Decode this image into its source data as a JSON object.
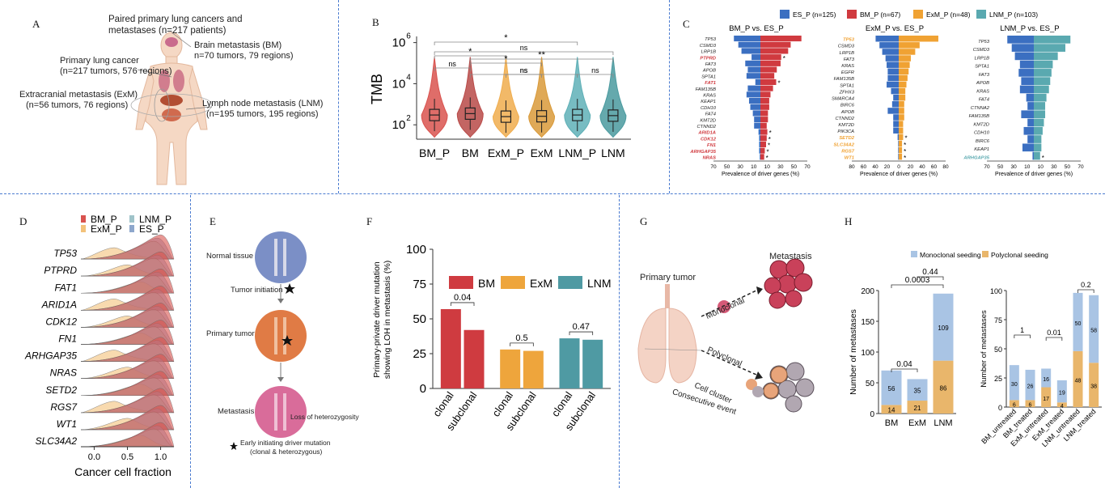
{
  "panels": {
    "A": {
      "letter": "A",
      "paired": "Paired primary lung cancers and",
      "paired2": "metastases (n=217 patients)",
      "bm": "Brain metastasis (BM)",
      "bm2": "n=70 tumors, 79 regions)",
      "primary": "Primary lung cancer",
      "primary2": "(n=217 tumors, 576 regions)",
      "exm": "Extracranial metastasis (ExM)",
      "exm2": "(n=56 tumors, 76 regions)",
      "lnm": "Lymph node metastasis (LNM)",
      "lnm2": "(n=195 tumors, 195 regions)"
    },
    "B": {
      "letter": "B"
    },
    "C": {
      "letter": "C"
    },
    "D": {
      "letter": "D"
    },
    "E": {
      "letter": "E",
      "normal": "Normal tissue",
      "initiation": "Tumor initiation",
      "primary": "Primary tumor",
      "metastasis": "Metastasis",
      "loh": "Loss of heterozygosity",
      "note": "Early initiating driver mutation",
      "note2": "(clonal & heterozygous)"
    },
    "F": {
      "letter": "F"
    },
    "G": {
      "letter": "G",
      "primary": "Primary tumor",
      "metastasis": "Metastasis",
      "mono": "Monoclonal",
      "poly": "Polyclonal",
      "cluster": "Cell cluster",
      "consecutive": "Consecutive event"
    },
    "H": {
      "letter": "H"
    }
  },
  "chart_data": [
    {
      "id": "B",
      "type": "violin",
      "ylabel": "TMB",
      "yscale": "log",
      "yticks": [
        "10",
        "10",
        "10"
      ],
      "ytick_exp": [
        "2",
        "4",
        "6"
      ],
      "ytick_values": [
        100,
        10000,
        1000000
      ],
      "categories": [
        "BM_P",
        "BM",
        "ExM_P",
        "ExM",
        "LNM_P",
        "LNM"
      ],
      "colors": [
        "#d9534f",
        "#b94a48",
        "#f0ad4e",
        "#d99a3a",
        "#5fb0b7",
        "#4a9a9f"
      ],
      "medians": [
        300,
        350,
        250,
        260,
        300,
        280
      ],
      "brackets": [
        {
          "from": 0,
          "to": 4,
          "label": "*"
        },
        {
          "from": 0,
          "to": 5,
          "label": "ns"
        },
        {
          "from": 0,
          "to": 2,
          "label": "*"
        },
        {
          "from": 1,
          "to": 5,
          "label": "**"
        },
        {
          "from": 1,
          "to": 3,
          "label": "*"
        },
        {
          "from": 0,
          "to": 1,
          "label": "ns"
        },
        {
          "from": 1,
          "to": 4,
          "label": "ns"
        },
        {
          "from": 2,
          "to": 3,
          "label": "ns"
        },
        {
          "from": 4,
          "to": 5,
          "label": "ns"
        }
      ]
    },
    {
      "id": "C",
      "type": "butterfly-bar",
      "legend": [
        {
          "name": "ES_P (n=125)",
          "color": "#3b6fc1"
        },
        {
          "name": "BM_P (n=67)",
          "color": "#d03a3f"
        },
        {
          "name": "ExM_P (n=48)",
          "color": "#f0a233"
        },
        {
          "name": "LNM_P (n=103)",
          "color": "#5aa9b0"
        }
      ],
      "xlabel": "Prevalence of driver genes (%)",
      "subplots": [
        {
          "title": "BM_P vs. ES_P",
          "xticks": [
            "70",
            "50",
            "30",
            "10",
            "10",
            "30",
            "50",
            "70"
          ],
          "right_color": "#d03a3f",
          "genes": [
            "TP53",
            "CSMD3",
            "LRP1B",
            "PTPRD",
            "FAT3",
            "APOB",
            "SPTA1",
            "FAT1",
            "FAM135B",
            "KRAS",
            "KEAP1",
            "CDH10",
            "FAT4",
            "KMT2D",
            "CTNND2",
            "ARID1A",
            "CDK12",
            "FN1",
            "ARHGAP35",
            "NRAS"
          ],
          "highlight": [
            "PTPRD",
            "FAT1",
            "ARID1A",
            "CDK12",
            "FN1",
            "ARHGAP35",
            "NRAS"
          ],
          "left": [
            42,
            35,
            30,
            14,
            24,
            20,
            22,
            8,
            20,
            22,
            18,
            16,
            12,
            10,
            10,
            3,
            2,
            2,
            2,
            1
          ],
          "right": [
            65,
            48,
            44,
            33,
            32,
            26,
            22,
            25,
            20,
            16,
            14,
            14,
            12,
            12,
            10,
            11,
            10,
            9,
            7,
            6
          ],
          "star": [
            "PTPRD",
            "FAT1",
            "ARID1A",
            "CDK12",
            "FN1",
            "ARHGAP35",
            "NRAS"
          ]
        },
        {
          "title": "ExM_P vs. ES_P",
          "xticks": [
            "80",
            "60",
            "40",
            "20",
            "0",
            "20",
            "40",
            "60",
            "80"
          ],
          "right_color": "#f0a233",
          "genes": [
            "TP53",
            "CSMD3",
            "LRP1B",
            "FAT3",
            "KRAS",
            "EGFR",
            "FAM135B",
            "SPTA1",
            "ZFHX3",
            "SMARCA4",
            "BIRC6",
            "APOB",
            "CTNND2",
            "KMT2D",
            "PIK3CA",
            "SETD2",
            "SLC34A2",
            "RGS7",
            "WT1"
          ],
          "highlight": [
            "TP53",
            "SETD2",
            "SLC34A2",
            "RGS7",
            "WT1"
          ],
          "left": [
            42,
            35,
            30,
            24,
            22,
            20,
            20,
            22,
            14,
            10,
            12,
            20,
            10,
            10,
            10,
            2,
            1,
            1,
            1
          ],
          "right": [
            72,
            38,
            30,
            22,
            20,
            18,
            16,
            14,
            12,
            12,
            10,
            10,
            10,
            8,
            8,
            8,
            6,
            6,
            6
          ],
          "star": [
            "SETD2",
            "SLC34A2",
            "RGS7",
            "WT1"
          ]
        },
        {
          "title": "LNM_P vs. ES_P",
          "xticks": [
            "70",
            "50",
            "30",
            "10",
            "10",
            "30",
            "50",
            "70"
          ],
          "right_color": "#5aa9b0",
          "genes": [
            "TP53",
            "CSMD3",
            "LRP1B",
            "SPTA1",
            "FAT3",
            "APOB",
            "KRAS",
            "FAT4",
            "CTNNA2",
            "FAM135B",
            "KMT2D",
            "CDH10",
            "BIRC6",
            "KEAP1",
            "ARHGAP35"
          ],
          "highlight": [
            "ARHGAP35"
          ],
          "left": [
            42,
            35,
            30,
            22,
            24,
            20,
            22,
            12,
            10,
            20,
            10,
            16,
            10,
            18,
            2
          ],
          "right": [
            58,
            50,
            38,
            30,
            28,
            26,
            24,
            20,
            18,
            18,
            16,
            14,
            12,
            12,
            10
          ],
          "star": [
            "ARHGAP35"
          ]
        }
      ]
    },
    {
      "id": "D",
      "type": "ridgeline",
      "xlabel": "Cancer cell fraction",
      "xticks": [
        "0.0",
        "0.5",
        "1.0"
      ],
      "legend": [
        {
          "name": "BM_P",
          "color": "#d9534f"
        },
        {
          "name": "LNM_P",
          "color": "#9fc3c9"
        },
        {
          "name": "ExM_P",
          "color": "#f3c27a"
        },
        {
          "name": "ES_P",
          "color": "#8ea7cc"
        }
      ],
      "genes": [
        "TP53",
        "PTPRD",
        "FAT1",
        "ARID1A",
        "CDK12",
        "FN1",
        "ARHGAP35",
        "NRAS",
        "SETD2",
        "RGS7",
        "WT1",
        "SLC34A2"
      ]
    },
    {
      "id": "F",
      "type": "bar",
      "ylabel": "Primary-private driver mutation showing LOH in metastasis (%)",
      "ylim": [
        0,
        100
      ],
      "yticks": [
        "0",
        "25",
        "50",
        "75",
        "100"
      ],
      "legend": [
        {
          "name": "BM",
          "color": "#cf3b40"
        },
        {
          "name": "ExM",
          "color": "#eea53c"
        },
        {
          "name": "LNM",
          "color": "#4f9aa3"
        }
      ],
      "categories": [
        "clonal",
        "subclonal",
        "clonal",
        "subclonal",
        "clonal",
        "subclonal"
      ],
      "values": [
        57,
        42,
        28,
        27,
        36,
        35
      ],
      "colors": [
        "#cf3b40",
        "#cf3b40",
        "#eea53c",
        "#eea53c",
        "#4f9aa3",
        "#4f9aa3"
      ],
      "pvalues": [
        {
          "from": 0,
          "to": 1,
          "label": "0.04"
        },
        {
          "from": 2,
          "to": 3,
          "label": "0.5"
        },
        {
          "from": 4,
          "to": 5,
          "label": "0.47"
        }
      ]
    },
    {
      "id": "H1",
      "type": "stacked-bar",
      "ylabel": "Number of metastases",
      "ylim": [
        0,
        200
      ],
      "yticks": [
        "0",
        "50",
        "100",
        "150",
        "200"
      ],
      "legend": [
        {
          "name": "Monoclonal seeding",
          "color": "#a9c4e4"
        },
        {
          "name": "Polyclonal seeding",
          "color": "#e9b66b"
        }
      ],
      "categories": [
        "BM",
        "ExM",
        "LNM"
      ],
      "series": [
        {
          "name": "Polyclonal seeding",
          "values": [
            14,
            21,
            86
          ]
        },
        {
          "name": "Monoclonal seeding",
          "values": [
            56,
            35,
            109
          ]
        }
      ],
      "pvalues": [
        {
          "from": 0,
          "to": 2,
          "label": "0.0003"
        },
        {
          "from": 1,
          "to": 2,
          "label": "0.44"
        },
        {
          "from": 0,
          "to": 1,
          "label": "0.04"
        }
      ]
    },
    {
      "id": "H2",
      "type": "stacked-bar",
      "ylabel": "Number of metastases",
      "ylim": [
        0,
        100
      ],
      "yticks": [
        "0",
        "25",
        "50",
        "75",
        "100"
      ],
      "categories": [
        "BM_untreated",
        "BM_treated",
        "ExM_untreated",
        "ExM_treated",
        "LNM_untreated",
        "LNM_treated"
      ],
      "series": [
        {
          "name": "Polyclonal seeding",
          "values": [
            6,
            6,
            17,
            4,
            48,
            38
          ]
        },
        {
          "name": "Monoclonal seeding",
          "values": [
            30,
            26,
            16,
            19,
            50,
            58
          ]
        }
      ],
      "pvalues": [
        {
          "from": 0,
          "to": 1,
          "label": "1"
        },
        {
          "from": 2,
          "to": 3,
          "label": "0.01"
        },
        {
          "from": 4,
          "to": 5,
          "label": "0.2"
        }
      ]
    }
  ]
}
